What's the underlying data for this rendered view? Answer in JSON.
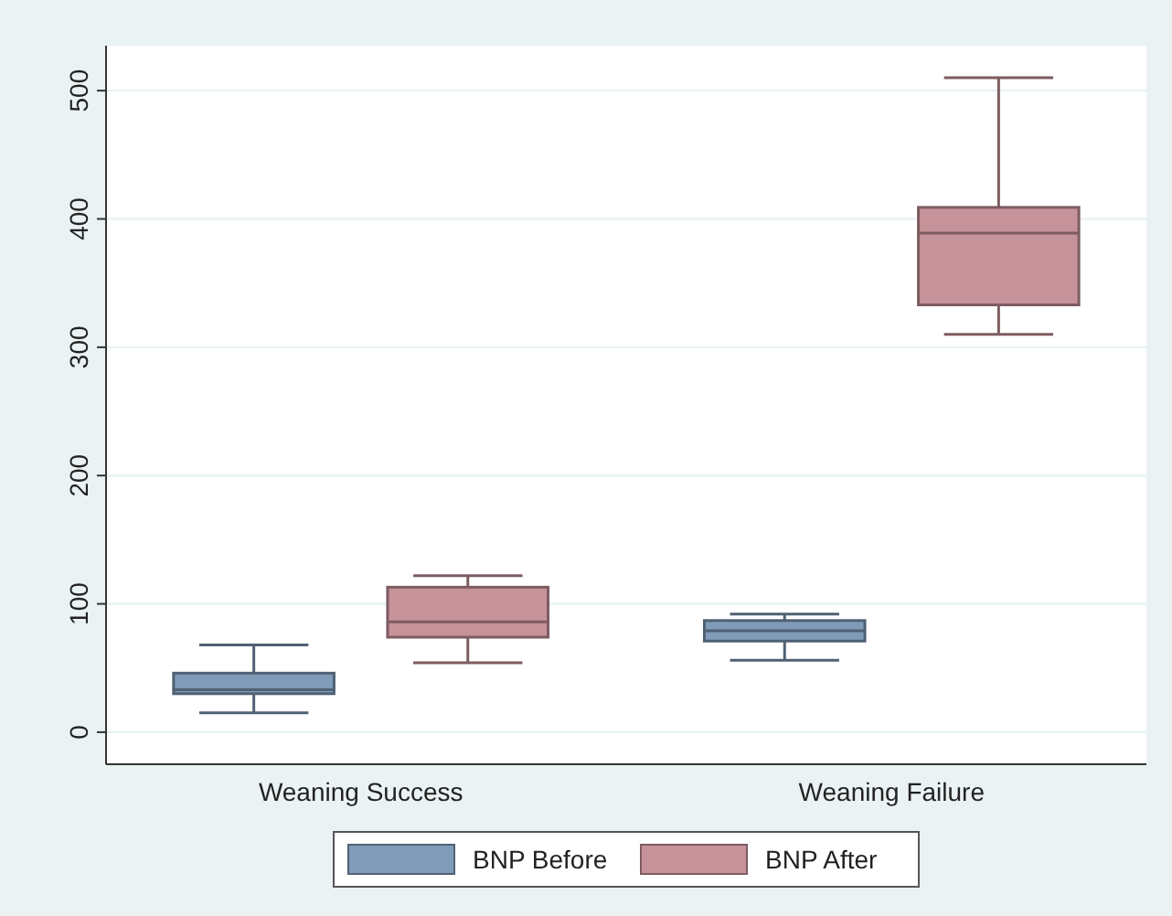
{
  "chart_data": {
    "type": "box",
    "categories": [
      "Weaning Success",
      "Weaning Failure"
    ],
    "series": [
      {
        "name": "BNP Before",
        "color": "#7f9bb8",
        "boxes": [
          {
            "low": 15,
            "q1": 30,
            "median": 33,
            "q3": 46,
            "high": 68
          },
          {
            "low": 56,
            "q1": 71,
            "median": 79,
            "q3": 87,
            "high": 92
          }
        ]
      },
      {
        "name": "BNP After",
        "color": "#c7939a",
        "boxes": [
          {
            "low": 54,
            "q1": 74,
            "median": 86,
            "q3": 113,
            "high": 122
          },
          {
            "low": 310,
            "q1": 333,
            "median": 389,
            "q3": 409,
            "high": 510
          }
        ]
      }
    ],
    "ylim": [
      -25,
      535
    ],
    "yticks": [
      0,
      100,
      200,
      300,
      400,
      500
    ],
    "grid": "y",
    "legend": "bottom"
  }
}
